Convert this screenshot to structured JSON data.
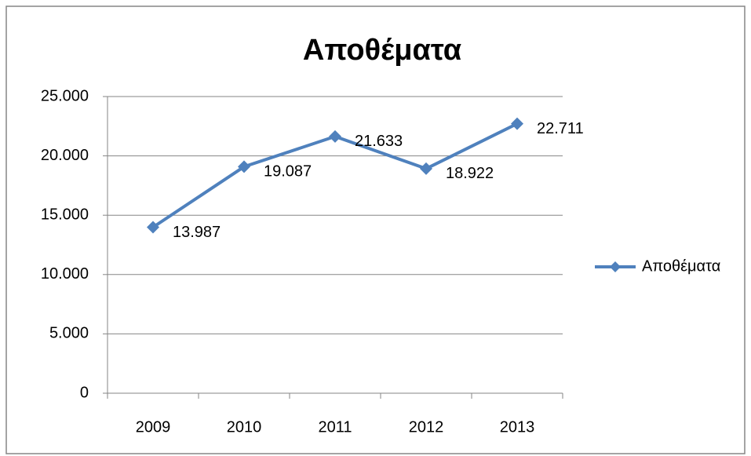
{
  "chart_data": {
    "type": "line",
    "title": "Αποθέματα",
    "categories": [
      "2009",
      "2010",
      "2011",
      "2012",
      "2013"
    ],
    "series": [
      {
        "name": "Αποθέματα",
        "color": "#4f81bd",
        "values": [
          13987,
          19087,
          21633,
          18922,
          22711
        ],
        "value_labels": [
          "13.987",
          "19.087",
          "21.633",
          "18.922",
          "22.711"
        ]
      }
    ],
    "ylim": [
      0,
      25000
    ],
    "yticks": [
      0,
      {
        "value": 5000,
        "label": "5.000"
      },
      {
        "value": 10000,
        "label": "10.000"
      },
      {
        "value": 15000,
        "label": "15.000"
      },
      {
        "value": 20000,
        "label": "20.000"
      },
      {
        "value": 25000,
        "label": "25.000"
      }
    ],
    "grid": true,
    "legend": "right"
  }
}
